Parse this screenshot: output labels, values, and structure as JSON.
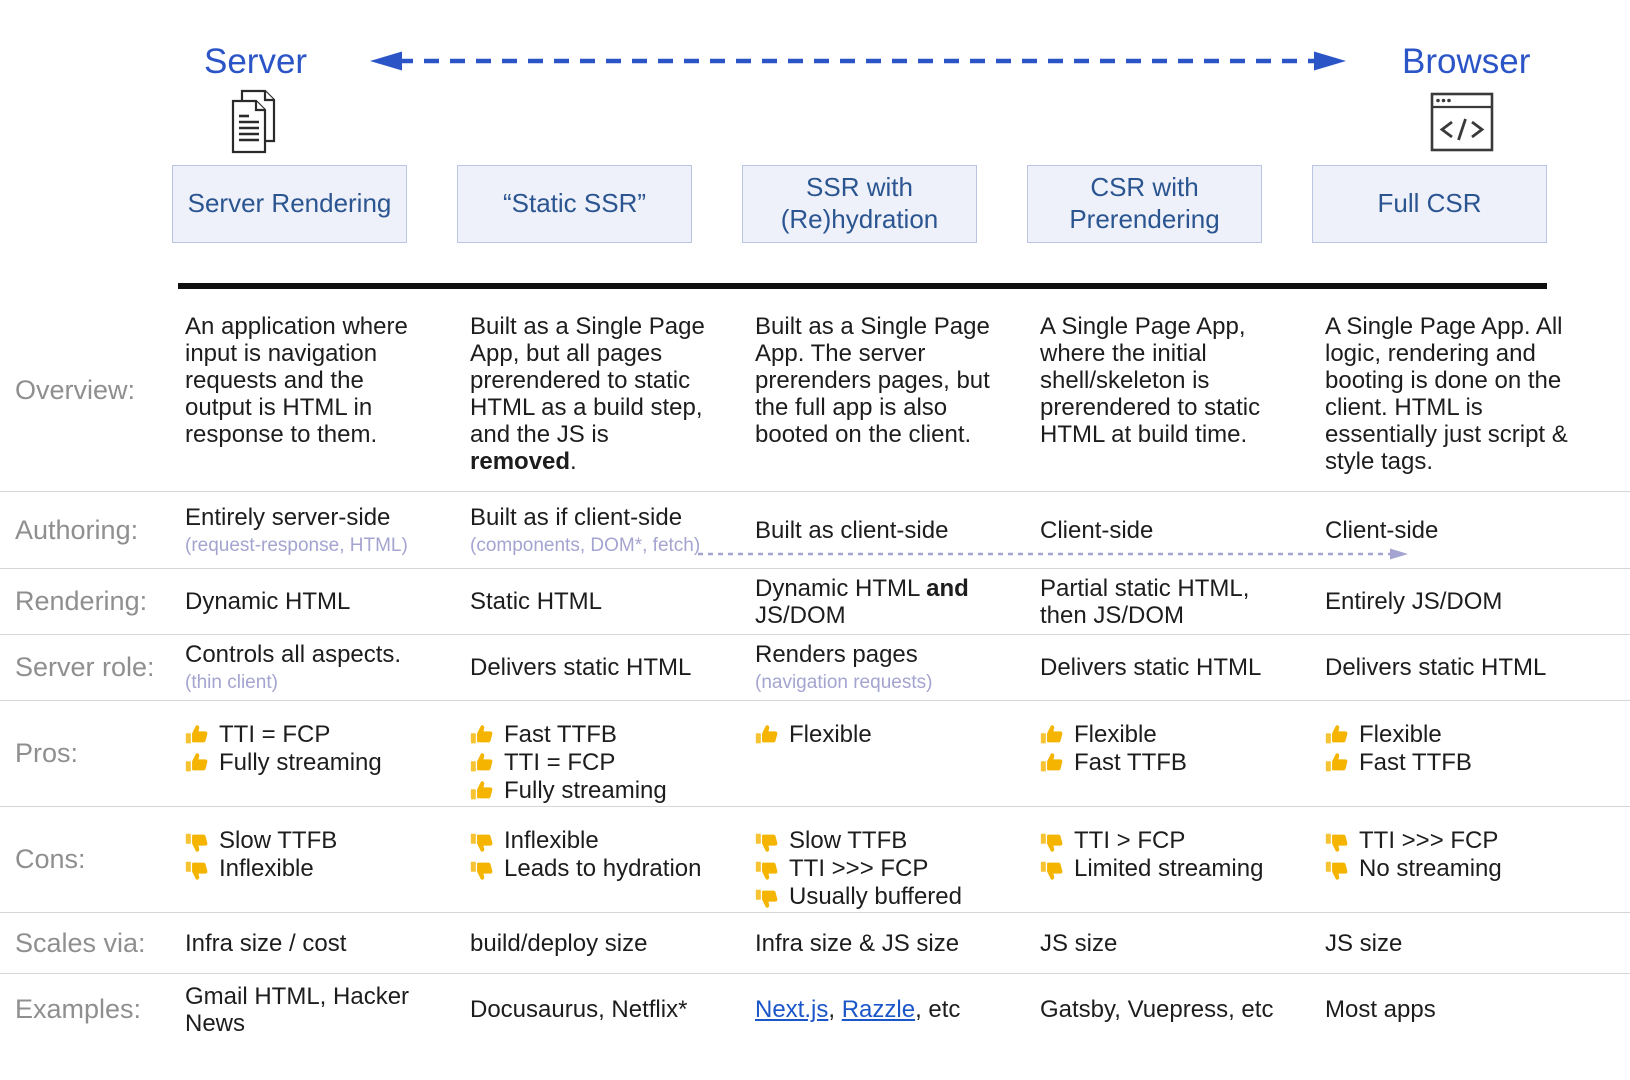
{
  "header": {
    "server_label": "Server",
    "browser_label": "Browser",
    "columns": [
      "Server Rendering",
      "“Static SSR”",
      "SSR with (Re)hydration",
      "CSR with Prerendering",
      "Full CSR"
    ]
  },
  "icons": {
    "server_icon": "document-pages-icon",
    "browser_icon": "browser-window-code-icon",
    "pro_icon": "thumbs-up-icon",
    "con_icon": "thumbs-down-icon"
  },
  "colors": {
    "accent_blue": "#2b55c7",
    "header_navy": "#2b5591",
    "box_bg": "#eef1f9",
    "box_border": "#b9c5e3",
    "label_gray": "#8f8f8f",
    "body_text": "#1d1d1d",
    "sub_purple": "#a4a4d0",
    "link_blue": "#1b57c9",
    "thumb_yellow": "#f4b400"
  },
  "table": {
    "rows": [
      {
        "label": "Overview:",
        "cells": [
          {
            "segments": [
              {
                "t": "text",
                "v": "An application where input is navigation requests and the output is HTML in response to them."
              }
            ]
          },
          {
            "segments": [
              {
                "t": "text",
                "v": "Built as a Single Page App, but all pages prerendered to static HTML as a build step, and the JS is "
              },
              {
                "t": "bold",
                "v": "removed"
              },
              {
                "t": "text",
                "v": "."
              }
            ]
          },
          {
            "segments": [
              {
                "t": "text",
                "v": "Built as a Single Page App. The server prerenders pages, but the full app is also booted on the client."
              }
            ]
          },
          {
            "segments": [
              {
                "t": "text",
                "v": "A Single Page App, where the initial shell/skeleton is prerendered to static HTML at build time."
              }
            ]
          },
          {
            "segments": [
              {
                "t": "text",
                "v": "A Single Page App. All logic, rendering and booting is done on the client. HTML is essentially just script & style tags."
              }
            ]
          }
        ]
      },
      {
        "label": "Authoring:",
        "cells": [
          {
            "segments": [
              {
                "t": "text",
                "v": "Entirely server-side"
              },
              {
                "t": "sub",
                "v": "(request-response, HTML)"
              }
            ]
          },
          {
            "segments": [
              {
                "t": "text",
                "v": "Built as if client-side"
              },
              {
                "t": "sub",
                "v": "(components, DOM*, fetch)"
              }
            ]
          },
          {
            "segments": [
              {
                "t": "text",
                "v": "Built as client-side"
              }
            ]
          },
          {
            "segments": [
              {
                "t": "text",
                "v": "Client-side"
              }
            ]
          },
          {
            "segments": [
              {
                "t": "text",
                "v": "Client-side"
              }
            ]
          }
        ]
      },
      {
        "label": "Rendering:",
        "cells": [
          {
            "segments": [
              {
                "t": "text",
                "v": "Dynamic HTML"
              }
            ]
          },
          {
            "segments": [
              {
                "t": "text",
                "v": "Static HTML"
              }
            ]
          },
          {
            "segments": [
              {
                "t": "text",
                "v": "Dynamic HTML "
              },
              {
                "t": "bold",
                "v": "and"
              },
              {
                "t": "text",
                "v": " JS/DOM"
              }
            ]
          },
          {
            "segments": [
              {
                "t": "text",
                "v": "Partial static HTML, then JS/DOM"
              }
            ]
          },
          {
            "segments": [
              {
                "t": "text",
                "v": "Entirely JS/DOM"
              }
            ]
          }
        ]
      },
      {
        "label": "Server role:",
        "cells": [
          {
            "segments": [
              {
                "t": "text",
                "v": "Controls all aspects."
              },
              {
                "t": "sub",
                "v": "(thin client)"
              }
            ]
          },
          {
            "segments": [
              {
                "t": "text",
                "v": "Delivers static HTML"
              }
            ]
          },
          {
            "segments": [
              {
                "t": "text",
                "v": "Renders pages"
              },
              {
                "t": "sub",
                "v": "(navigation requests)"
              }
            ]
          },
          {
            "segments": [
              {
                "t": "text",
                "v": "Delivers static HTML"
              }
            ]
          },
          {
            "segments": [
              {
                "t": "text",
                "v": "Delivers static HTML"
              }
            ]
          }
        ]
      },
      {
        "label": "Pros:",
        "cells": [
          {
            "segments": [
              {
                "t": "pro",
                "v": "TTI = FCP"
              },
              {
                "t": "pro",
                "v": "Fully streaming"
              }
            ]
          },
          {
            "segments": [
              {
                "t": "pro",
                "v": "Fast TTFB"
              },
              {
                "t": "pro",
                "v": "TTI = FCP"
              },
              {
                "t": "pro",
                "v": "Fully streaming"
              }
            ]
          },
          {
            "segments": [
              {
                "t": "pro",
                "v": "Flexible"
              }
            ]
          },
          {
            "segments": [
              {
                "t": "pro",
                "v": "Flexible"
              },
              {
                "t": "pro",
                "v": "Fast TTFB"
              }
            ]
          },
          {
            "segments": [
              {
                "t": "pro",
                "v": "Flexible"
              },
              {
                "t": "pro",
                "v": "Fast TTFB"
              }
            ]
          }
        ]
      },
      {
        "label": "Cons:",
        "cells": [
          {
            "segments": [
              {
                "t": "con",
                "v": "Slow TTFB"
              },
              {
                "t": "con",
                "v": "Inflexible"
              }
            ]
          },
          {
            "segments": [
              {
                "t": "con",
                "v": "Inflexible"
              },
              {
                "t": "con",
                "v": "Leads to hydration"
              }
            ]
          },
          {
            "segments": [
              {
                "t": "con",
                "v": "Slow TTFB"
              },
              {
                "t": "con",
                "v": "TTI >>> FCP"
              },
              {
                "t": "con",
                "v": "Usually buffered"
              }
            ]
          },
          {
            "segments": [
              {
                "t": "con",
                "v": "TTI > FCP"
              },
              {
                "t": "con",
                "v": "Limited streaming"
              }
            ]
          },
          {
            "segments": [
              {
                "t": "con",
                "v": "TTI >>> FCP"
              },
              {
                "t": "con",
                "v": "No streaming"
              }
            ]
          }
        ]
      },
      {
        "label": "Scales via:",
        "cells": [
          {
            "segments": [
              {
                "t": "text",
                "v": "Infra size / cost"
              }
            ]
          },
          {
            "segments": [
              {
                "t": "text",
                "v": "build/deploy size"
              }
            ]
          },
          {
            "segments": [
              {
                "t": "text",
                "v": "Infra size & JS size"
              }
            ]
          },
          {
            "segments": [
              {
                "t": "text",
                "v": "JS size"
              }
            ]
          },
          {
            "segments": [
              {
                "t": "text",
                "v": "JS size"
              }
            ]
          }
        ]
      },
      {
        "label": "Examples:",
        "cells": [
          {
            "segments": [
              {
                "t": "text",
                "v": "Gmail HTML, Hacker News"
              }
            ]
          },
          {
            "segments": [
              {
                "t": "text",
                "v": "Docusaurus, Netflix*"
              }
            ]
          },
          {
            "segments": [
              {
                "t": "link",
                "v": "Next.js"
              },
              {
                "t": "text",
                "v": ", "
              },
              {
                "t": "link",
                "v": "Razzle"
              },
              {
                "t": "text",
                "v": ", etc"
              }
            ]
          },
          {
            "segments": [
              {
                "t": "text",
                "v": "Gatsby, Vuepress, etc"
              }
            ]
          },
          {
            "segments": [
              {
                "t": "text",
                "v": "Most apps"
              }
            ]
          }
        ]
      }
    ]
  }
}
